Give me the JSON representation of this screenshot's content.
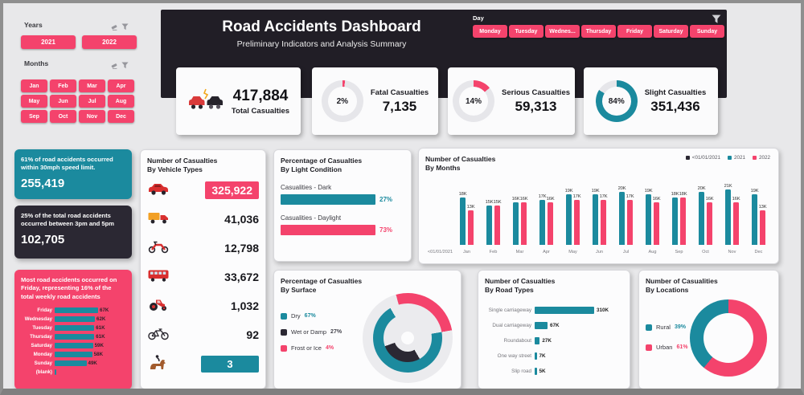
{
  "header": {
    "title": "Road Accidents Dashboard",
    "subtitle": "Preliminary Indicators and Analysis Summary",
    "accent_pink": "#f4436c",
    "accent_teal": "#1b8a9e",
    "accent_dark": "#211e26"
  },
  "filters": {
    "years": {
      "label": "Years",
      "options": [
        "2021",
        "2022"
      ]
    },
    "months": {
      "label": "Months",
      "options": [
        "Jan",
        "Feb",
        "Mar",
        "Apr",
        "May",
        "Jun",
        "Jul",
        "Aug",
        "Sep",
        "Oct",
        "Nov",
        "Dec"
      ]
    },
    "day": {
      "label": "Day",
      "options": [
        "Monday",
        "Tuesday",
        "Wednes...",
        "Thursday",
        "Friday",
        "Saturday",
        "Sunday"
      ]
    }
  },
  "kpis": [
    {
      "icon": "car-crash-icon",
      "value": "417,884",
      "label": "Total Casualties"
    },
    {
      "percent": "2%",
      "pct": 2,
      "color": "#f4436c",
      "label": "Fatal Casualties",
      "value": "7,135"
    },
    {
      "percent": "14%",
      "pct": 14,
      "color": "#f4436c",
      "label": "Serious Casualties",
      "value": "59,313"
    },
    {
      "percent": "84%",
      "pct": 84,
      "color": "#1b8a9e",
      "label": "Slight Casualties",
      "value": "351,436"
    }
  ],
  "insights": {
    "speed": {
      "text": "61% of road accidents occurred within 30mph speed limit.",
      "value": "255,419"
    },
    "time": {
      "text": "25% of the total road accidents occurred between 3pm and 5pm",
      "value": "102,705"
    },
    "friday": {
      "text": "Most road accidents occurred on Friday, representing 16% of the total weekly road accidents"
    }
  },
  "vehicle_panel": {
    "title_1": "Number of Casualties",
    "title_2": "By Vehicle Types",
    "rows": [
      {
        "icon": "car-icon",
        "value": "325,922",
        "highlight": "pink"
      },
      {
        "icon": "truck-icon",
        "value": "41,036"
      },
      {
        "icon": "motorcycle-icon",
        "value": "12,798"
      },
      {
        "icon": "bus-icon",
        "value": "33,672"
      },
      {
        "icon": "tractor-icon",
        "value": "1,032"
      },
      {
        "icon": "bicycle-icon",
        "value": "92"
      },
      {
        "icon": "horse-icon",
        "value": "3",
        "highlight": "teal"
      }
    ]
  },
  "light_panel": {
    "title_1": "Percentage of Casualties",
    "title_2": "By Light Condition",
    "bars": [
      {
        "label": "Casualities - Dark",
        "percent": "27%"
      },
      {
        "label": "Casualities - Daylight",
        "percent": "73%"
      }
    ]
  },
  "months_panel": {
    "title_1": "Number of Casualties",
    "title_2": "By Months",
    "legend": [
      {
        "label": "<01/01/2021",
        "color": "#2b2833"
      },
      {
        "label": "2021",
        "color": "#1b8a9e"
      },
      {
        "label": "2022",
        "color": "#f4436c"
      }
    ]
  },
  "surface_panel": {
    "title_1": "Percentage of Casualties",
    "title_2": "By Surface",
    "legend": [
      {
        "label": "Dry",
        "percent": "67%",
        "color": "#1b8a9e"
      },
      {
        "label": "Wet or Damp",
        "percent": "27%",
        "color": "#2b2833"
      },
      {
        "label": "Frost or Ice",
        "percent": "4%",
        "color": "#f4436c"
      }
    ]
  },
  "roadtypes_panel": {
    "title_1": "Number of Casualties",
    "title_2": "By Road Types"
  },
  "locations_panel": {
    "title_1": "Number of Casualities",
    "title_2": "By Locations",
    "legend": [
      {
        "label": "Rural",
        "percent": "39%",
        "color": "#1b8a9e"
      },
      {
        "label": "Urban",
        "percent": "61%",
        "color": "#f4436c"
      }
    ]
  },
  "chart_data": [
    {
      "id": "months",
      "type": "bar",
      "title": "Number of Casualties By Months",
      "categories": [
        "<01/01/2021",
        "Jan",
        "Feb",
        "Mar",
        "Apr",
        "May",
        "Jun",
        "Jul",
        "Aug",
        "Sep",
        "Oct",
        "Nov",
        "Dec"
      ],
      "series": [
        {
          "name": "2021",
          "color": "#1b8a9e",
          "values": [
            null,
            18,
            15,
            16,
            17,
            19,
            19,
            20,
            19,
            18,
            20,
            21,
            19
          ]
        },
        {
          "name": "2022",
          "color": "#f4436c",
          "values": [
            null,
            13,
            15,
            16,
            16,
            17,
            17,
            17,
            16,
            18,
            16,
            16,
            13
          ]
        }
      ],
      "unit": "K",
      "ylim": [
        0,
        22
      ],
      "grid": false,
      "legend_position": "top-right"
    },
    {
      "id": "weekday",
      "type": "bar",
      "title": "Weekly road accidents by day",
      "categories": [
        "Friday",
        "Wednesday",
        "Tuesday",
        "Thursday",
        "Saturday",
        "Monday",
        "Sunday",
        "(blank)"
      ],
      "values": [
        67,
        62,
        61,
        61,
        59,
        58,
        49,
        null
      ],
      "labels": [
        "67K",
        "62K",
        "61K",
        "61K",
        "59K",
        "58K",
        "49K",
        ""
      ],
      "unit": "K"
    },
    {
      "id": "light",
      "type": "bar",
      "title": "Percentage of Casualties By Light Condition",
      "categories": [
        "Casualities - Dark",
        "Casualities - Daylight"
      ],
      "values": [
        27,
        73
      ],
      "unit": "%"
    },
    {
      "id": "surface",
      "type": "donut",
      "title": "Percentage of Casualties By Surface",
      "labels": [
        "Dry",
        "Wet or Damp",
        "Frost or Ice"
      ],
      "values": [
        67,
        27,
        4
      ],
      "unit": "%"
    },
    {
      "id": "roadtypes",
      "type": "bar",
      "title": "Number of Casualties By Road Types",
      "categories": [
        "Single carriageway",
        "Dual carriageway",
        "Roundabout",
        "One way street",
        "Slip road"
      ],
      "values": [
        310,
        67,
        27,
        7,
        5
      ],
      "labels": [
        "310K",
        "67K",
        "27K",
        "7K",
        "5K"
      ],
      "unit": "K"
    },
    {
      "id": "locations",
      "type": "donut",
      "title": "Number of Casualities By Locations",
      "labels": [
        "Rural",
        "Urban"
      ],
      "values": [
        39,
        61
      ],
      "unit": "%"
    },
    {
      "id": "vehicles",
      "type": "table",
      "title": "Number of Casualties By Vehicle Types",
      "categories": [
        "Car",
        "Van",
        "Motorcycle",
        "Bus",
        "Tractor",
        "Bicycle",
        "Horse"
      ],
      "values": [
        325922,
        41036,
        12798,
        33672,
        1032,
        92,
        3
      ]
    }
  ]
}
